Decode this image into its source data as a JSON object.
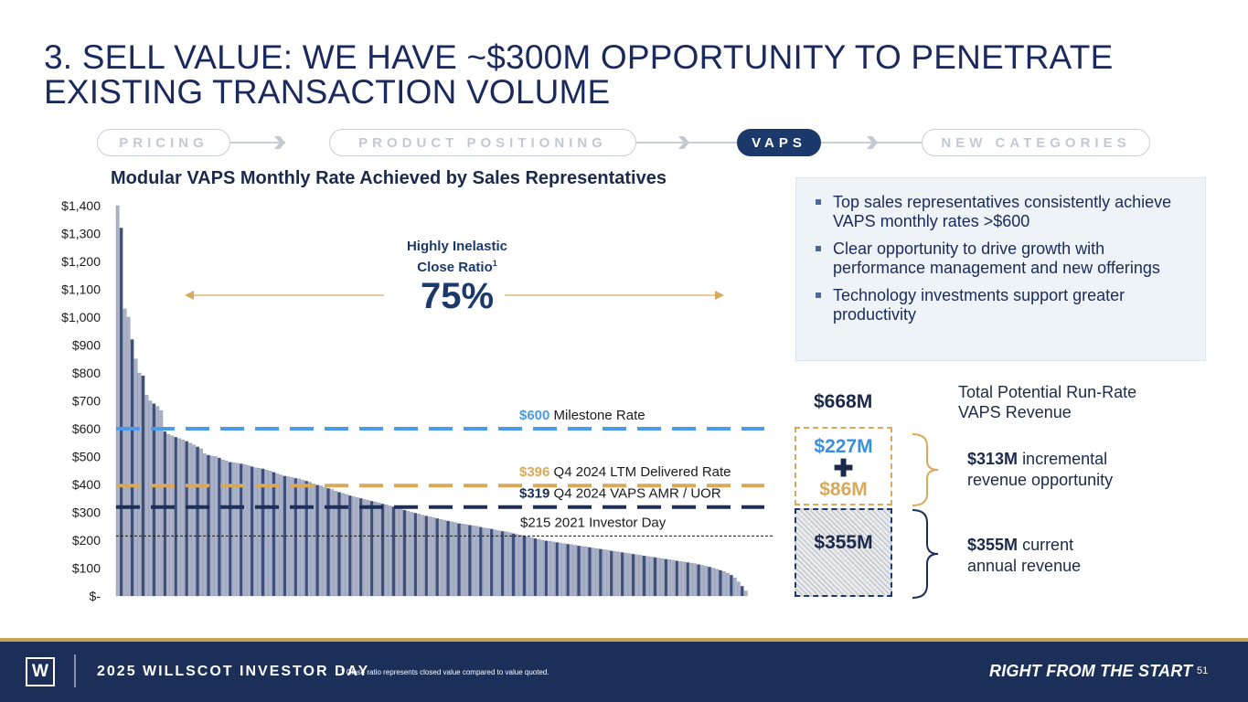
{
  "slide": {
    "title": "3. SELL VALUE: WE HAVE ~$300M OPPORTUNITY TO PENETRATE EXISTING TRANSACTION VOLUME"
  },
  "stepper": {
    "steps": [
      "PRICING",
      "PRODUCT POSITIONING",
      "VAPS",
      "NEW CATEGORIES"
    ],
    "active": "VAPS"
  },
  "chart_data": {
    "type": "bar",
    "title": "Modular VAPS Monthly Rate Achieved by Sales Representatives",
    "xlabel": "",
    "ylabel": "",
    "ylim": [
      0,
      1400
    ],
    "ytick_labels": [
      "$-",
      "$100",
      "$200",
      "$300",
      "$400",
      "$500",
      "$600",
      "$700",
      "$800",
      "$900",
      "$1,000",
      "$1,100",
      "$1,200",
      "$1,300",
      "$1,400"
    ],
    "grid": false,
    "values": [
      1400,
      1320,
      1030,
      1000,
      920,
      850,
      800,
      790,
      720,
      700,
      690,
      680,
      665,
      590,
      580,
      575,
      570,
      565,
      560,
      555,
      548,
      542,
      535,
      528,
      510,
      505,
      502,
      500,
      495,
      488,
      484,
      480,
      478,
      476,
      474,
      472,
      468,
      464,
      460,
      458,
      456,
      452,
      448,
      444,
      438,
      434,
      430,
      428,
      425,
      422,
      420,
      415,
      412,
      408,
      402,
      398,
      395,
      390,
      386,
      382,
      376,
      372,
      368,
      364,
      360,
      356,
      353,
      350,
      346,
      343,
      340,
      337,
      334,
      330,
      327,
      323,
      320,
      316,
      312,
      308,
      304,
      300,
      297,
      294,
      290,
      287,
      284,
      281,
      278,
      275,
      272,
      269,
      266,
      263,
      260,
      258,
      256,
      254,
      252,
      250,
      247,
      244,
      242,
      240,
      237,
      234,
      232,
      230,
      227,
      224,
      221,
      218,
      215,
      212,
      209,
      206,
      203,
      200,
      198,
      196,
      194,
      192,
      190,
      188,
      186,
      184,
      182,
      180,
      178,
      176,
      174,
      172,
      170,
      168,
      166,
      164,
      162,
      160,
      158,
      156,
      154,
      152,
      150,
      148,
      146,
      144,
      142,
      140,
      138,
      136,
      134,
      132,
      130,
      128,
      126,
      124,
      122,
      120,
      118,
      116,
      113,
      110,
      107,
      104,
      100,
      96,
      92,
      88,
      82,
      75,
      65,
      50,
      35,
      18
    ],
    "reference_lines": [
      {
        "value": 600,
        "bold": "$600",
        "label": "Milestone Rate",
        "color": "#4a9be8",
        "style": "dashed"
      },
      {
        "value": 396,
        "bold": "$396",
        "label": "Q4 2024 LTM Delivered Rate",
        "color": "#d9a95b",
        "style": "dashed"
      },
      {
        "value": 319,
        "bold": "$319",
        "label": "Q4 2024 VAPS AMR / UOR",
        "color": "#1b2f58",
        "style": "dashed"
      },
      {
        "value": 215,
        "bold": "",
        "label": "$215 2021 Investor Day",
        "color": "#1b1b1b",
        "style": "dotted"
      }
    ],
    "annotation": {
      "label_line1": "Highly Inelastic",
      "label_line2": "Close Ratio",
      "superscript": "1",
      "value": "75%"
    }
  },
  "info_box": {
    "bullets": [
      "Top sales representatives consistently achieve VAPS monthly rates >$600",
      "Clear opportunity to drive growth with performance management and new offerings",
      "Technology investments support greater productivity"
    ]
  },
  "revenue": {
    "total": "$668M",
    "total_label_line1": "Total Potential Run-Rate",
    "total_label_line2": "VAPS Revenue",
    "top_value": "$227M",
    "plus": "✚",
    "mid_value": "$86M",
    "bottom_value": "$355M",
    "incremental_bold": "$313M",
    "incremental_text1": "incremental",
    "incremental_text2": "revenue opportunity",
    "current_bold": "$355M",
    "current_text1": "current",
    "current_text2": "annual revenue",
    "colors": {
      "blue": "#3a8fe0",
      "gold": "#d9a95b",
      "navy": "#1b2a4a"
    }
  },
  "footer": {
    "logo": "W",
    "event": "2025 WILLSCOT INVESTOR DAY",
    "note": "1 Close ratio represents closed value compared to value quoted.",
    "tagline": "RIGHT FROM THE START",
    "page": "51"
  }
}
